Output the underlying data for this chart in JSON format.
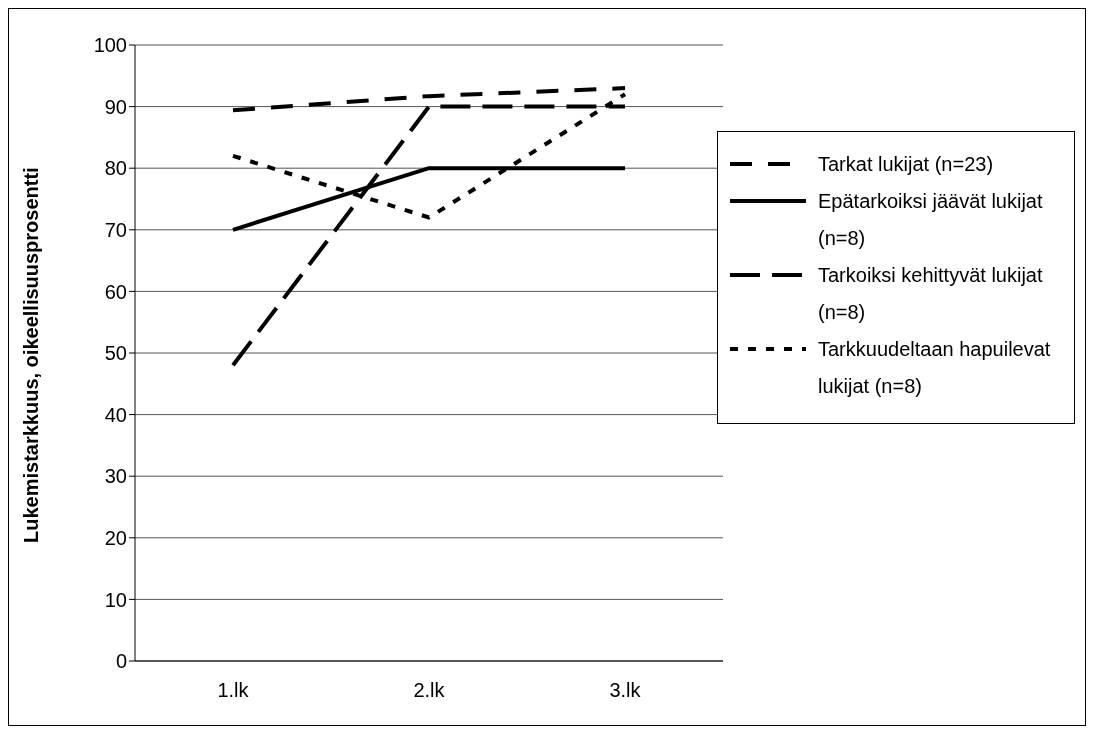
{
  "chart_data": {
    "type": "line",
    "ylabel": "Lukemistarkkuus, oikeellisuusprosentti",
    "categories": [
      "1.lk",
      "2.lk",
      "3.lk"
    ],
    "series": [
      {
        "name": "Tarkat lukijat (n=23)",
        "color": "#000000",
        "line_style": "dashed",
        "values": [
          89.4,
          91.7,
          93
        ]
      },
      {
        "name": "Epätarkoiksi jäävät lukijat (n=8)",
        "color": "#000000",
        "line_style": "solid",
        "values": [
          70,
          80,
          80
        ]
      },
      {
        "name": "Tarkoiksi kehittyvät lukijat (n=8)",
        "color": "#000000",
        "line_style": "dashed",
        "values": [
          48,
          90,
          90
        ]
      },
      {
        "name": "Tarkkuudeltaan hapuilevat lukijat (n=8)",
        "color": "#000000",
        "line_style": "dotted",
        "values": [
          82,
          72,
          92
        ]
      }
    ],
    "ylim": [
      0,
      100
    ],
    "yticks": [
      0,
      10,
      20,
      30,
      40,
      50,
      60,
      70,
      80,
      90,
      100
    ],
    "grid": "y",
    "legend": "right",
    "marker": "none"
  }
}
